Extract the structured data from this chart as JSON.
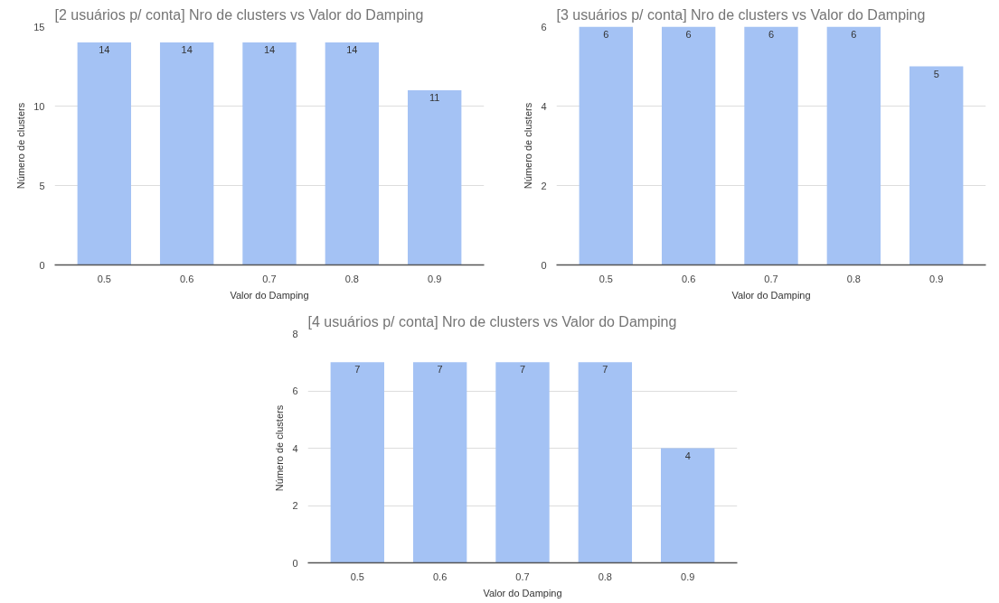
{
  "chart_data": [
    {
      "type": "bar",
      "title": "[2 usuários p/ conta] Nro de clusters vs Valor do Damping",
      "xlabel": "Valor do Damping",
      "ylabel": "Número de clusters",
      "categories": [
        "0.5",
        "0.6",
        "0.7",
        "0.8",
        "0.9"
      ],
      "values": [
        14,
        14,
        14,
        14,
        11
      ],
      "color": "#a4c2f4",
      "ylim": [
        0,
        15
      ],
      "yticks": [
        0,
        5,
        10,
        15
      ],
      "grid": "y",
      "data_labels": true
    },
    {
      "type": "bar",
      "title": "[3 usuários p/ conta] Nro de clusters vs Valor do Damping",
      "xlabel": "Valor do Damping",
      "ylabel": "Número de clusters",
      "categories": [
        "0.5",
        "0.6",
        "0.7",
        "0.8",
        "0.9"
      ],
      "values": [
        6,
        6,
        6,
        6,
        5
      ],
      "color": "#a4c2f4",
      "ylim": [
        0,
        6
      ],
      "yticks": [
        0,
        2,
        4,
        6
      ],
      "grid": "y",
      "data_labels": true
    },
    {
      "type": "bar",
      "title": "[4 usuários p/ conta] Nro de clusters vs Valor do Damping",
      "xlabel": "Valor do Damping",
      "ylabel": "Número de clusters",
      "categories": [
        "0.5",
        "0.6",
        "0.7",
        "0.8",
        "0.9"
      ],
      "values": [
        7,
        7,
        7,
        7,
        4
      ],
      "color": "#a4c2f4",
      "ylim": [
        0,
        8
      ],
      "yticks": [
        0,
        2,
        4,
        6,
        8
      ],
      "grid": "y",
      "data_labels": true
    }
  ]
}
